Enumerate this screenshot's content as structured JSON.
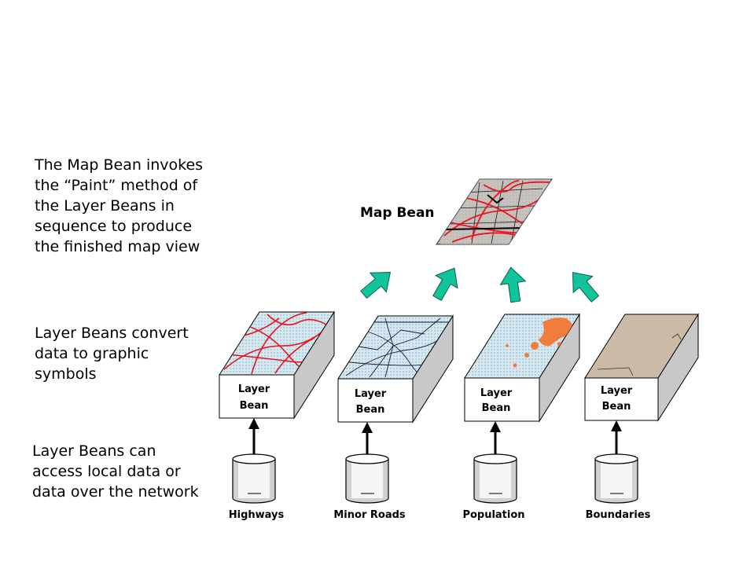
{
  "notes": {
    "map_bean_invokes": "The Map Bean invokes\nthe “Paint” method of\nthe Layer Beans in\nsequence to produce\nthe finished map view",
    "layer_beans_convert": "Layer Beans convert\ndata to graphic\nsymbols",
    "layer_beans_access": "Layer Beans can\naccess local data or\ndata over the network"
  },
  "map_bean": {
    "label": "Map Bean"
  },
  "layers": [
    {
      "bean_line1": "Layer",
      "bean_line2": "Bean",
      "source": "Highways",
      "surface": "highways"
    },
    {
      "bean_line1": "Layer",
      "bean_line2": "Bean",
      "source": "Minor Roads",
      "surface": "minor-roads"
    },
    {
      "bean_line1": "Layer",
      "bean_line2": "Bean",
      "source": "Population",
      "surface": "population"
    },
    {
      "bean_line1": "Layer",
      "bean_line2": "Bean",
      "source": "Boundaries",
      "surface": "boundaries"
    }
  ],
  "colors": {
    "highways": "#e8141e",
    "minor_roads": "#1a1a2e",
    "population_fill": "#cfe3ec",
    "population_blob": "#f07d3c",
    "boundaries_fill": "#cbbaa6",
    "arrow": "#12c49c",
    "box_side": "#c8c8c8"
  }
}
